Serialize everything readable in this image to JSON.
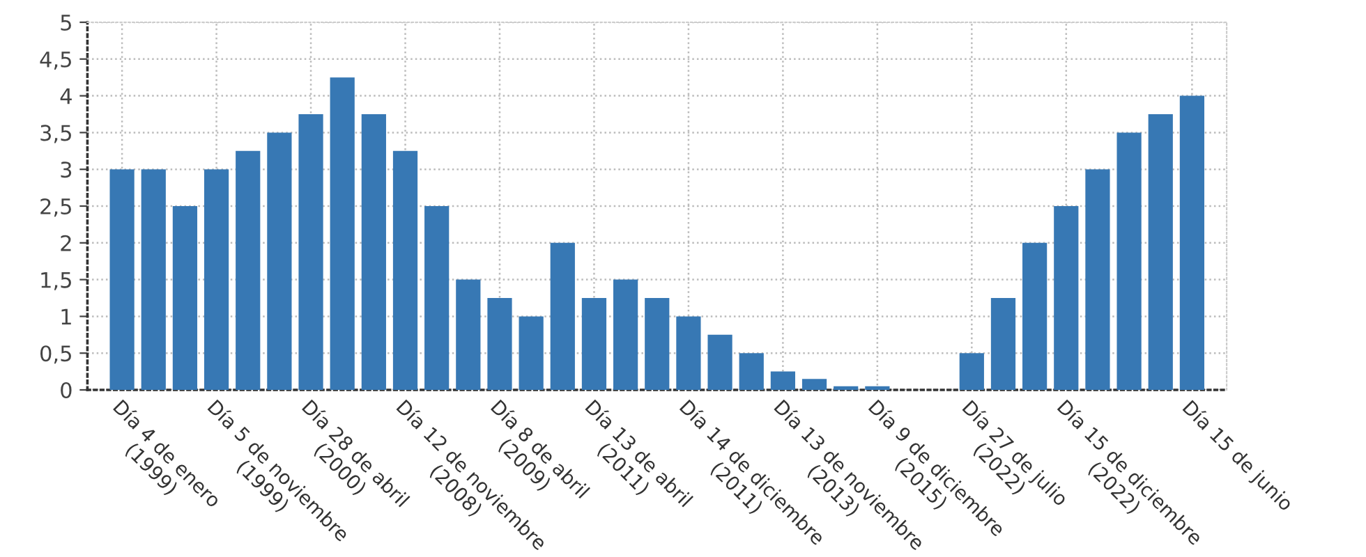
{
  "chart_data": {
    "type": "bar",
    "categories": [
      "Día 4 de enero\n(1999)",
      null,
      null,
      "Día 5 de noviembre\n(1999)",
      null,
      null,
      "Día 28 de abril\n(2000)",
      null,
      null,
      "Día 12 de noviembre\n(2008)",
      null,
      null,
      "Día 8 de abril\n(2009)",
      null,
      null,
      "Día 13 de abril\n(2011)",
      null,
      null,
      "Día 14 de diciembre\n(2011)",
      null,
      null,
      "Día 13 de noviembre\n(2013)",
      null,
      null,
      "Día 9 de diciembre\n(2015)",
      null,
      null,
      "Día 27 de julio\n(2022)",
      null,
      null,
      "Día 15 de diciembre\n(2022)",
      null,
      null,
      null,
      "Día 15 de junio"
    ],
    "values": [
      3,
      3,
      2.5,
      3,
      3.25,
      3.5,
      3.75,
      4.25,
      3.75,
      3.25,
      2.5,
      1.5,
      1.25,
      1,
      2,
      1.25,
      1.5,
      1.25,
      1,
      0.75,
      0.5,
      0.25,
      0.15,
      0.05,
      0.05,
      0,
      0,
      0.5,
      1.25,
      2,
      2.5,
      3,
      3.5,
      3.75,
      4
    ],
    "color": "#3778b4",
    "ylim": [
      0,
      5
    ],
    "yticks": [
      0,
      {
        "value": 0.5,
        "label": "0,5"
      },
      1,
      {
        "value": 1.5,
        "label": "1,5"
      },
      2,
      {
        "value": 2.5,
        "label": "2,5"
      },
      3,
      {
        "value": 3.5,
        "label": "3,5"
      },
      4,
      {
        "value": 4.5,
        "label": "4,5"
      },
      5
    ],
    "grid": true
  }
}
